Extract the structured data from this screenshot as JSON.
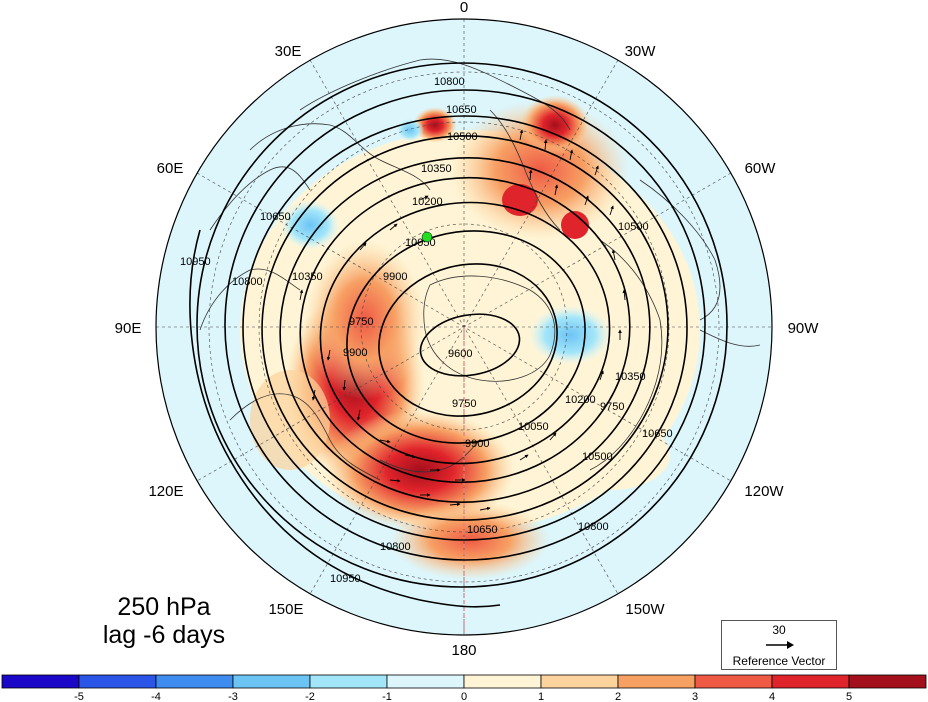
{
  "map": {
    "title_level": "250 hPa",
    "title_lag": "lag -6 days",
    "longitude_labels": [
      "0",
      "30W",
      "60W",
      "90W",
      "120W",
      "150W",
      "180",
      "150E",
      "120E",
      "90E",
      "60E",
      "30E"
    ],
    "contour_labels": [
      "10800",
      "10650",
      "10500",
      "10350",
      "10200",
      "10050",
      "9900",
      "9750",
      "9600",
      "9750",
      "9900",
      "10050",
      "10200",
      "10350",
      "10500",
      "10650",
      "10800",
      "10950",
      "10950",
      "10800",
      "10650",
      "10500",
      "10350",
      "9900",
      "9750",
      "10800",
      "10650"
    ],
    "reference_vector": {
      "magnitude": "30",
      "label": "Reference Vector"
    },
    "colorbar": {
      "ticks": [
        "-5",
        "-4",
        "-3",
        "-2",
        "-1",
        "0",
        "1",
        "2",
        "3",
        "4",
        "5"
      ],
      "colors": [
        "#1b07c8",
        "#2a55e6",
        "#3f8cf0",
        "#6cc4f5",
        "#a4e6f9",
        "#dcf6fc",
        "#fff5d6",
        "#fcd39c",
        "#f7a064",
        "#ef5a45",
        "#e0242b",
        "#a40f1c"
      ]
    },
    "colors": {
      "land_outline": "#333333",
      "contour": "#000000",
      "marker": "#22dd22",
      "meridian_dash": "#e08080"
    }
  }
}
